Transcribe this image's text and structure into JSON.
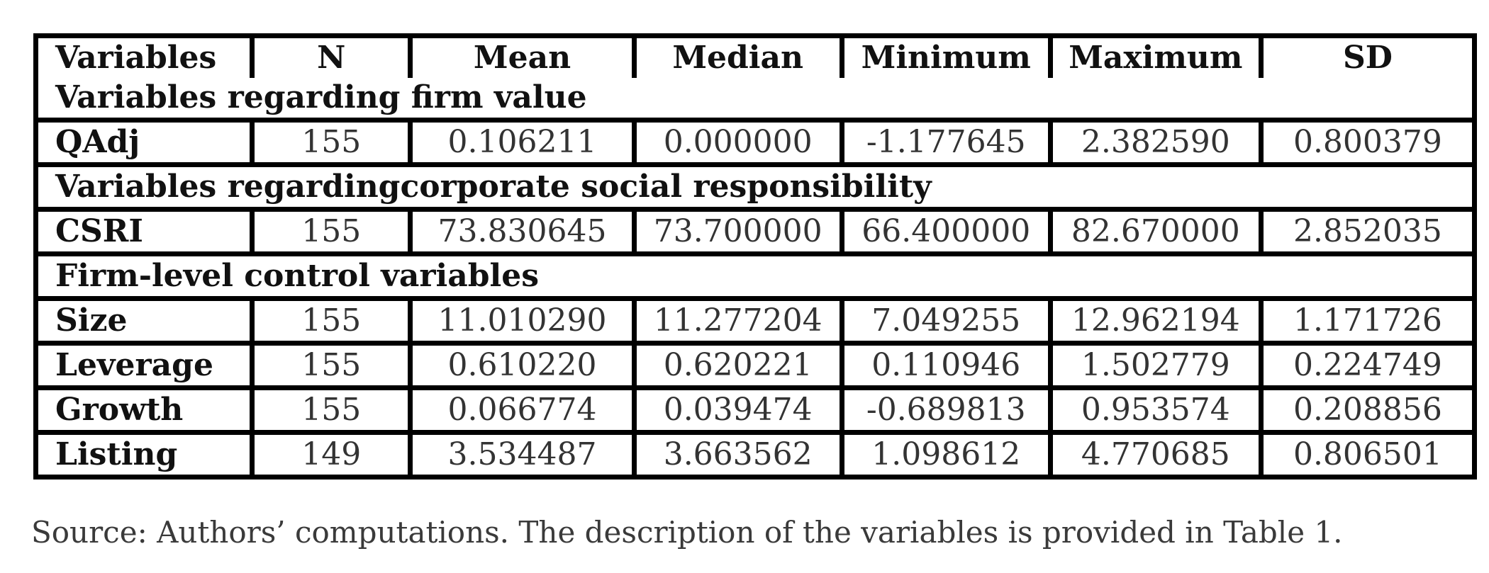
{
  "table": {
    "headers": [
      "Variables",
      "N",
      "Mean",
      "Median",
      "Minimum",
      "Maximum",
      "SD"
    ],
    "sections": [
      {
        "title": "Variables regarding firm value",
        "rows": [
          [
            "QAdj",
            "155",
            "0.106211",
            "0.000000",
            "-1.177645",
            "2.382590",
            "0.800379"
          ]
        ]
      },
      {
        "title": "Variables regardingcorporate social responsibility",
        "rows": [
          [
            "CSRI",
            "155",
            "73.830645",
            "73.700000",
            "66.400000",
            "82.670000",
            "2.852035"
          ]
        ]
      },
      {
        "title": "Firm-level control variables",
        "rows": [
          [
            "Size",
            "155",
            "11.010290",
            "11.277204",
            "7.049255",
            "12.962194",
            "1.171726"
          ],
          [
            "Leverage",
            "155",
            "0.610220",
            "0.620221",
            "0.110946",
            "1.502779",
            "0.224749"
          ],
          [
            "Growth",
            "155",
            "0.066774",
            "0.039474",
            "-0.689813",
            "0.953574",
            "0.208856"
          ],
          [
            "Listing",
            "149",
            "3.534487",
            "3.663562",
            "1.098612",
            "4.770685",
            "0.806501"
          ]
        ]
      }
    ]
  },
  "source_note": "Source: Authors’ computations. The description of the variables is provided in Table 1."
}
